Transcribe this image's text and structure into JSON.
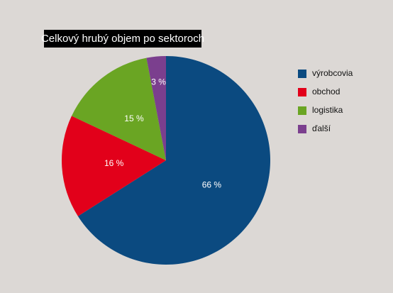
{
  "chart_data": {
    "type": "pie",
    "title": "Celkový hrubý objem po sektoroch",
    "categories": [
      "výrobcovia",
      "obchod",
      "logistika",
      "ďalší"
    ],
    "values": [
      66,
      16,
      15,
      3
    ],
    "value_labels": [
      "66 %",
      "16 %",
      "15 %",
      "3 %"
    ],
    "colors": [
      "#0b4a80",
      "#e2001a",
      "#6aa523",
      "#7b3f8e"
    ],
    "legend": "right"
  }
}
